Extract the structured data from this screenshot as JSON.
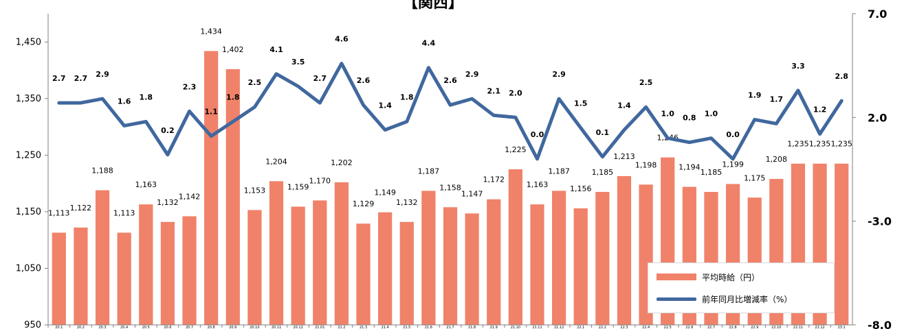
{
  "page_title": "【関西】",
  "legend": {
    "bar_label": "平均時給（円）",
    "line_label": "前年同月比増減率（%）"
  },
  "colors": {
    "bar": "#f0826a",
    "line": "#40689e",
    "axis": "#7f7f7f"
  },
  "chart_data": {
    "type": "bar",
    "title": "【関西】",
    "categories": [
      "20.1",
      "20.2",
      "20.3",
      "20.4",
      "20.5",
      "20.6",
      "20.7",
      "20.8",
      "20.9",
      "20.10",
      "20.11",
      "20.12",
      "21.01",
      "21.2",
      "21.3",
      "21.4",
      "21.5",
      "21.6",
      "21.7",
      "21.8",
      "21.9",
      "21.10",
      "21.11",
      "21.12",
      "22.1",
      "22.2",
      "22.3",
      "22.4",
      "22.5",
      "22.6",
      "22.7",
      "22.8",
      "22.9",
      "22.10",
      "22.11",
      "22.12",
      "23.1"
    ],
    "series": [
      {
        "name": "平均時給（円）",
        "axis": "left",
        "values": [
          1113,
          1122,
          1188,
          1113,
          1163,
          1132,
          1142,
          1434,
          1402,
          1153,
          1204,
          1159,
          1170,
          1202,
          1129,
          1149,
          1132,
          1187,
          1158,
          1147,
          1172,
          1225,
          1163,
          1187,
          1156,
          1185,
          1213,
          1198,
          1246,
          1194,
          1185,
          1199,
          1175,
          1208,
          1235,
          1235,
          1235
        ],
        "labels": [
          "1,113",
          "1,122",
          "1,188",
          "1,113",
          "1,163",
          "1,132",
          "1,142",
          "1,434",
          "1,402",
          "1,153",
          "1,204",
          "1,159",
          "1,170",
          "1,202",
          "1,129",
          "1,149",
          "1,132",
          "1,187",
          "1,158",
          "1,147",
          "1,172",
          "1,225",
          "1,163",
          "1,187",
          "1,156",
          "1,185",
          "1,213",
          "1,198",
          "1,246",
          "1,194",
          "1,185",
          "1,199",
          "1,175",
          "1,208",
          "1,235",
          "1,235",
          "1,235"
        ]
      },
      {
        "name": "前年同月比増減率（%）",
        "axis": "right",
        "type": "line",
        "values": [
          2.7,
          2.7,
          2.9,
          1.6,
          1.8,
          0.2,
          2.3,
          1.1,
          1.8,
          2.5,
          4.1,
          3.5,
          2.7,
          4.6,
          2.6,
          1.4,
          1.8,
          4.4,
          2.6,
          2.9,
          2.1,
          2.0,
          0.0,
          2.9,
          1.5,
          0.1,
          1.4,
          2.5,
          1.0,
          0.8,
          1.0,
          0.0,
          1.9,
          1.7,
          3.3,
          1.2,
          2.8
        ],
        "labels": [
          "2.7",
          "2.7",
          "2.9",
          "1.6",
          "1.8",
          "0.2",
          "2.3",
          "1.1",
          "1.8",
          "2.5",
          "4.1",
          "3.5",
          "2.7",
          "4.6",
          "2.6",
          "1.4",
          "1.8",
          "4.4",
          "2.6",
          "2.9",
          "2.1",
          "2.0",
          "0.0",
          "2.9",
          "1.5",
          "0.1",
          "1.4",
          "2.5",
          "1.0",
          "0.8",
          "1.0",
          "0.0",
          "1.9",
          "1.7",
          "3.3",
          "1.2",
          "2.8"
        ]
      }
    ],
    "y_left": {
      "min": 950,
      "max": 1500,
      "ticks": [
        "950",
        "1,050",
        "1,150",
        "1,250",
        "1,350",
        "1,450"
      ],
      "tick_values": [
        950,
        1050,
        1150,
        1250,
        1350,
        1450
      ]
    },
    "y_right": {
      "min": -8.0,
      "max": 7.0,
      "ticks": [
        "-8.0",
        "-3.0",
        "2.0",
        "7.0"
      ],
      "tick_values": [
        -8,
        -3,
        2,
        7
      ]
    },
    "legend_position": "bottom-right",
    "grid": false
  }
}
